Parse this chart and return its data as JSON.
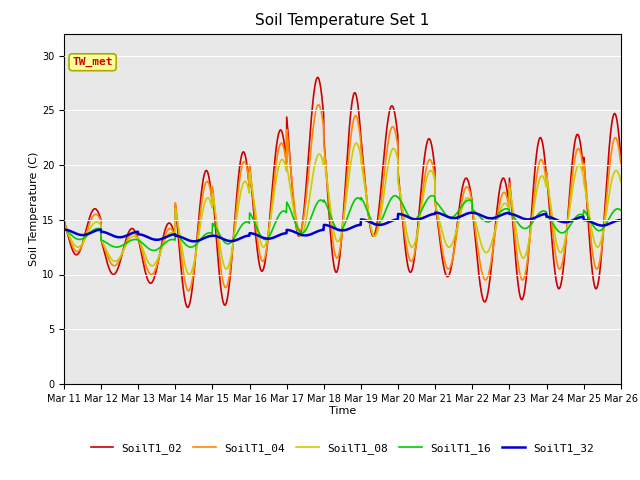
{
  "title": "Soil Temperature Set 1",
  "xlabel": "Time",
  "ylabel": "Soil Temperature (C)",
  "ylim": [
    0,
    32
  ],
  "yticks": [
    0,
    5,
    10,
    15,
    20,
    25,
    30
  ],
  "bg_color": "#e8e8e8",
  "fig_color": "#ffffff",
  "annotation_text": "TW_met",
  "annotation_color": "#cc0000",
  "annotation_bg": "#ffff99",
  "annotation_border": "#aaaa00",
  "series_colors": [
    "#cc0000",
    "#ff8800",
    "#cccc00",
    "#00cc00",
    "#0000cc"
  ],
  "series_lw": [
    1.2,
    1.2,
    1.2,
    1.2,
    1.8
  ],
  "series_labels": [
    "SoilT1_02",
    "SoilT1_04",
    "SoilT1_08",
    "SoilT1_16",
    "SoilT1_32"
  ],
  "xtick_labels": [
    "Mar 11",
    "Mar 12",
    "Mar 13",
    "Mar 14",
    "Mar 15",
    "Mar 16",
    "Mar 17",
    "Mar 18",
    "Mar 19",
    "Mar 20",
    "Mar 21",
    "Mar 22",
    "Mar 23",
    "Mar 24",
    "Mar 25",
    "Mar 26"
  ],
  "legend_fontsize": 8,
  "title_fontsize": 11,
  "tick_fontsize": 7,
  "axis_fontsize": 8,
  "peaks_02": [
    16.0,
    14.2,
    14.7,
    19.5,
    21.2,
    23.2,
    28.0,
    26.6,
    25.4,
    22.4,
    18.8,
    18.8,
    22.5,
    22.8,
    24.7
  ],
  "troughs_02": [
    11.8,
    10.0,
    9.2,
    7.0,
    7.2,
    10.3,
    13.5,
    10.2,
    13.5,
    10.2,
    9.8,
    7.5,
    7.7,
    8.7,
    8.7
  ],
  "peaks_04": [
    15.5,
    13.8,
    14.2,
    18.5,
    20.3,
    22.0,
    25.5,
    24.5,
    23.5,
    20.5,
    18.0,
    17.5,
    20.5,
    21.5,
    22.5
  ],
  "troughs_04": [
    12.1,
    10.8,
    10.0,
    8.5,
    8.8,
    11.2,
    14.0,
    11.5,
    13.5,
    11.2,
    10.5,
    9.5,
    9.5,
    10.5,
    10.5
  ],
  "peaks_08": [
    14.8,
    13.5,
    13.8,
    17.0,
    18.5,
    20.5,
    21.0,
    22.0,
    21.5,
    19.5,
    17.0,
    16.5,
    19.0,
    20.0,
    19.5
  ],
  "troughs_08": [
    12.5,
    11.2,
    10.8,
    10.0,
    10.5,
    12.5,
    13.5,
    13.0,
    13.5,
    12.5,
    12.5,
    12.0,
    11.5,
    12.0,
    12.5
  ],
  "peaks_16": [
    14.2,
    13.2,
    13.2,
    13.8,
    14.8,
    15.8,
    16.8,
    17.0,
    17.2,
    17.2,
    16.8,
    16.0,
    15.8,
    15.5,
    16.0
  ],
  "troughs_16": [
    13.2,
    12.5,
    12.2,
    12.5,
    12.8,
    13.2,
    13.8,
    14.0,
    14.5,
    15.0,
    15.2,
    14.8,
    14.2,
    13.8,
    14.0
  ],
  "base_32": [
    13.85,
    13.65,
    13.42,
    13.28,
    13.3,
    13.52,
    13.82,
    14.28,
    14.78,
    15.28,
    15.4,
    15.38,
    15.28,
    15.02,
    14.72
  ]
}
